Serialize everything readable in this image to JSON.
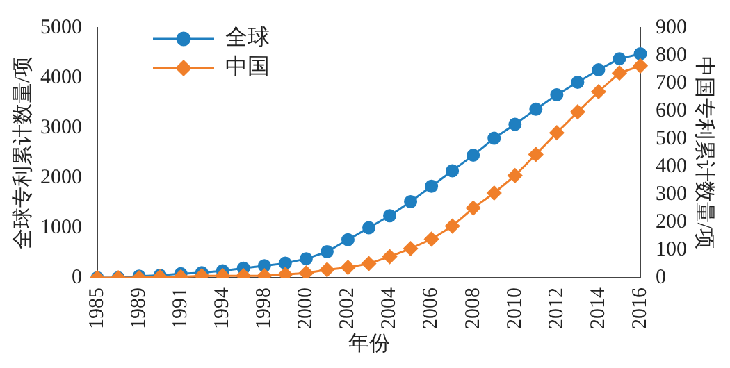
{
  "chart_data": {
    "type": "line",
    "xlabel": "年份",
    "ylabel": "全球专利累计数量/项",
    "y2label": "中国专利累计数量/项",
    "categories": [
      "1985",
      null,
      "1989",
      null,
      "1991",
      null,
      "1994",
      null,
      "1998",
      null,
      "2000",
      null,
      "2002",
      null,
      "2004",
      null,
      "2006",
      null,
      "2008",
      null,
      "2010",
      null,
      "2012",
      null,
      "2014",
      null,
      "2016"
    ],
    "series": [
      {
        "name": "全球",
        "color": "#1f7fc0",
        "marker": "circle",
        "values": [
          0,
          0,
          30,
          50,
          80,
          100,
          140,
          190,
          240,
          290,
          380,
          520,
          760,
          1000,
          1240,
          1520,
          1830,
          2140,
          2450,
          2790,
          3070,
          3370,
          3660,
          3910,
          4160,
          4380,
          4480
        ]
      },
      {
        "name": "中国",
        "color": "#f07f2a",
        "marker": "diamond",
        "axis": "y2",
        "values": [
          0,
          0,
          0,
          3,
          3,
          7,
          7,
          7,
          7,
          12,
          17,
          29,
          37,
          51,
          76,
          105,
          139,
          186,
          251,
          305,
          368,
          444,
          522,
          597,
          670,
          737,
          763
        ]
      }
    ],
    "ylim": [
      0,
      5000
    ],
    "yticks": [
      0,
      1000,
      2000,
      3000,
      4000,
      5000
    ],
    "y2lim": [
      0,
      900
    ],
    "y2ticks": [
      0,
      100,
      200,
      300,
      400,
      500,
      600,
      700,
      800,
      900
    ],
    "legend": "top left",
    "grid": false
  }
}
